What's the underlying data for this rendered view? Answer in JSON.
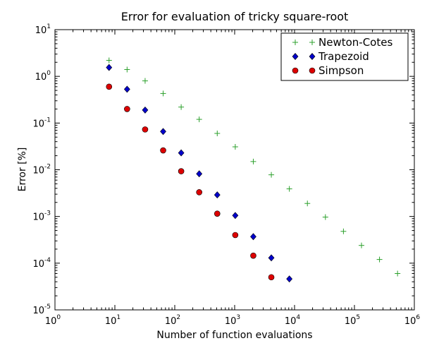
{
  "chart_data": {
    "type": "scatter",
    "title": "Error for evaluation of tricky square-root",
    "xlabel": "Number of function evaluations",
    "ylabel": "Error   [%]",
    "xscale": "log",
    "yscale": "log",
    "xlim": [
      1,
      1000000
    ],
    "ylim": [
      1e-05,
      10
    ],
    "x_ticks": [
      {
        "base": "10",
        "exp": "0"
      },
      {
        "base": "10",
        "exp": "1"
      },
      {
        "base": "10",
        "exp": "2"
      },
      {
        "base": "10",
        "exp": "3"
      },
      {
        "base": "10",
        "exp": "4"
      },
      {
        "base": "10",
        "exp": "5"
      },
      {
        "base": "10",
        "exp": "6"
      }
    ],
    "y_ticks": [
      {
        "base": "10",
        "exp": "-5"
      },
      {
        "base": "10",
        "exp": "-4"
      },
      {
        "base": "10",
        "exp": "-3"
      },
      {
        "base": "10",
        "exp": "-2"
      },
      {
        "base": "10",
        "exp": "-1"
      },
      {
        "base": "10",
        "exp": "0"
      },
      {
        "base": "10",
        "exp": "1"
      }
    ],
    "grid": false,
    "legend_position": "top-right",
    "series": [
      {
        "name": "Newton-Cotes",
        "marker": "plus",
        "color": "#2ca02c",
        "x": [
          8,
          16,
          32,
          64,
          128,
          256,
          512,
          1024,
          2048,
          4096,
          8192,
          16384,
          32768,
          65536,
          131072,
          262144,
          524288
        ],
        "y": [
          2.2,
          1.4,
          0.8,
          0.43,
          0.22,
          0.12,
          0.06,
          0.031,
          0.015,
          0.0078,
          0.0039,
          0.0019,
          0.00097,
          0.00048,
          0.00024,
          0.00012,
          6e-05
        ]
      },
      {
        "name": "Trapezoid",
        "marker": "diamond",
        "color": "#0000cc",
        "x": [
          8,
          16,
          32,
          64,
          128,
          256,
          512,
          1024,
          2048,
          4096,
          8192
        ],
        "y": [
          1.55,
          0.53,
          0.19,
          0.066,
          0.023,
          0.0082,
          0.0029,
          0.00105,
          0.00037,
          0.00013,
          4.6e-05
        ]
      },
      {
        "name": "Simpson",
        "marker": "circle",
        "color": "#dd0000",
        "x": [
          8,
          16,
          32,
          64,
          128,
          256,
          512,
          1024,
          2048,
          4096
        ],
        "y": [
          0.6,
          0.2,
          0.073,
          0.026,
          0.0093,
          0.0033,
          0.00115,
          0.0004,
          0.000145,
          5e-05
        ]
      }
    ]
  }
}
